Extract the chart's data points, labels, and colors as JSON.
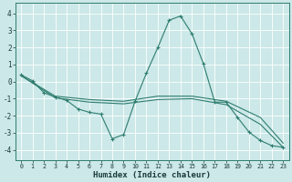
{
  "xlabel": "Humidex (Indice chaleur)",
  "background_color": "#cce8e8",
  "grid_color": "#b0d8d8",
  "line_color": "#2e7d6e",
  "xlim": [
    -0.5,
    23.5
  ],
  "ylim": [
    -4.6,
    4.6
  ],
  "yticks": [
    -4,
    -3,
    -2,
    -1,
    0,
    1,
    2,
    3,
    4
  ],
  "xticks": [
    0,
    1,
    2,
    3,
    4,
    5,
    6,
    7,
    8,
    9,
    10,
    11,
    12,
    13,
    14,
    15,
    16,
    17,
    18,
    19,
    20,
    21,
    22,
    23
  ],
  "series_main": {
    "x": [
      0,
      1,
      2,
      3,
      4,
      5,
      6,
      7,
      8,
      9,
      10,
      11,
      12,
      13,
      14,
      15,
      16,
      17,
      18,
      19,
      20,
      21,
      22,
      23
    ],
    "y": [
      0.4,
      0.05,
      -0.65,
      -0.9,
      -1.1,
      -1.6,
      -1.8,
      -1.9,
      -3.35,
      -3.1,
      -1.15,
      0.5,
      2.0,
      3.6,
      3.85,
      2.8,
      1.05,
      -1.2,
      -1.2,
      -2.1,
      -2.95,
      -3.45,
      -3.75,
      -3.85
    ]
  },
  "series_line1": {
    "x": [
      0,
      3,
      6,
      9,
      12,
      15,
      18,
      21,
      23
    ],
    "y": [
      0.35,
      -0.85,
      -1.05,
      -1.15,
      -0.85,
      -0.85,
      -1.15,
      -2.1,
      -3.6
    ]
  },
  "series_line2": {
    "x": [
      0,
      3,
      6,
      9,
      12,
      15,
      18,
      21,
      23
    ],
    "y": [
      0.35,
      -0.95,
      -1.2,
      -1.3,
      -1.05,
      -1.0,
      -1.35,
      -2.5,
      -3.85
    ]
  }
}
